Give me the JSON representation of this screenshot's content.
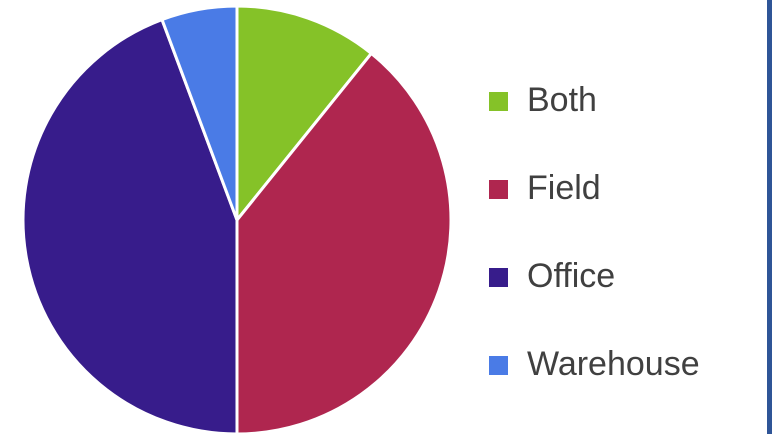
{
  "chart_data": {
    "type": "pie",
    "categories": [
      "Both",
      "Field",
      "Office",
      "Warehouse"
    ],
    "values": [
      10.8,
      39.2,
      44.3,
      5.7
    ],
    "colors": [
      "#85c228",
      "#af264f",
      "#371c8b",
      "#4a7be6"
    ],
    "legend": "right"
  }
}
